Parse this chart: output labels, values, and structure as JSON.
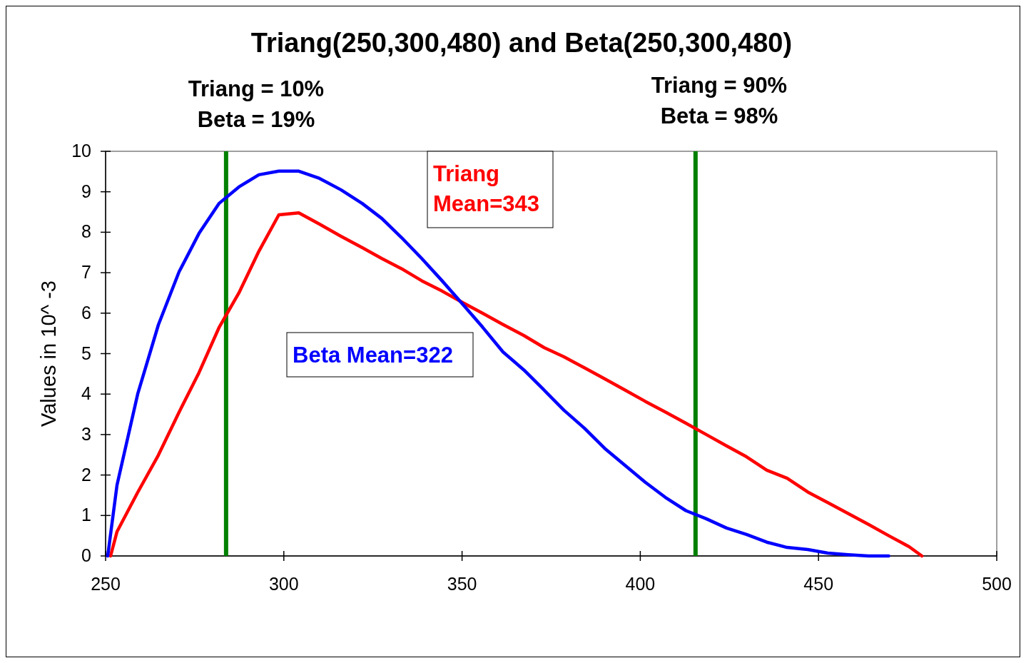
{
  "chart_data": {
    "type": "line",
    "title": "Triang(250,300,480) and Beta(250,300,480)",
    "ylabel": "Values in 10^ -3",
    "xlim": [
      250,
      500
    ],
    "xticks": [
      250,
      300,
      350,
      400,
      450,
      500
    ],
    "ylim": [
      0,
      10
    ],
    "yticks": [
      0,
      1,
      2,
      3,
      4,
      5,
      6,
      7,
      8,
      9,
      10
    ],
    "grid": false,
    "marker": "none",
    "line_style": "solid",
    "series": [
      {
        "name": "Triang Mean=343",
        "color": "#ff0000",
        "x": [
          251.4,
          253.2,
          259,
          264.8,
          270.6,
          276.2,
          281.8,
          287.4,
          293,
          298.6,
          304.2,
          310,
          316,
          322,
          327.5,
          333,
          338.7,
          344.3,
          350,
          355.7,
          361.5,
          367.3,
          373,
          378.6,
          384.3,
          390,
          395.7,
          401.4,
          407,
          412.8,
          418.5,
          424.2,
          429.8,
          435.5,
          441.2,
          447,
          452.6,
          458.3,
          464,
          469.7,
          475.4,
          479
        ],
        "values": [
          0,
          0.6,
          1.57,
          2.49,
          3.55,
          4.53,
          5.64,
          6.5,
          7.53,
          8.43,
          8.48,
          8.2,
          7.9,
          7.62,
          7.35,
          7.1,
          6.8,
          6.55,
          6.27,
          6,
          5.72,
          5.45,
          5.15,
          4.92,
          4.65,
          4.38,
          4.1,
          3.82,
          3.56,
          3.28,
          3,
          2.72,
          2.45,
          2.12,
          1.92,
          1.58,
          1.32,
          1.05,
          0.78,
          0.5,
          0.23,
          0
        ]
      },
      {
        "name": "Beta Mean=322",
        "color": "#0000ff",
        "x": [
          250.6,
          253.2,
          259,
          264.8,
          270.6,
          276.2,
          281.8,
          287.4,
          293,
          298.6,
          304.2,
          310,
          316,
          322,
          327.5,
          333,
          338.7,
          344.3,
          350,
          355.7,
          361.5,
          367.3,
          373,
          378.6,
          384.3,
          390,
          395.7,
          401.4,
          407,
          412.8,
          418.5,
          424.2,
          429.8,
          435.5,
          441.2,
          447,
          452.6,
          458.3,
          464,
          469.7
        ],
        "values": [
          0,
          1.75,
          4,
          5.71,
          7.02,
          7.97,
          8.71,
          9.12,
          9.42,
          9.51,
          9.51,
          9.33,
          9.05,
          8.71,
          8.34,
          7.87,
          7.35,
          6.81,
          6.24,
          5.66,
          5.04,
          4.6,
          4.1,
          3.6,
          3.16,
          2.66,
          2.24,
          1.82,
          1.45,
          1.12,
          0.92,
          0.69,
          0.53,
          0.34,
          0.21,
          0.16,
          0.07,
          0.03,
          0,
          0
        ]
      }
    ],
    "ref_lines": [
      {
        "axis": "x",
        "value": 283.8,
        "color": "#008000"
      },
      {
        "axis": "x",
        "value": 415.5,
        "color": "#008000"
      }
    ],
    "annotations": [
      "Triang = 10%\nBeta = 19%",
      "Triang = 90%\nBeta = 98%"
    ]
  }
}
